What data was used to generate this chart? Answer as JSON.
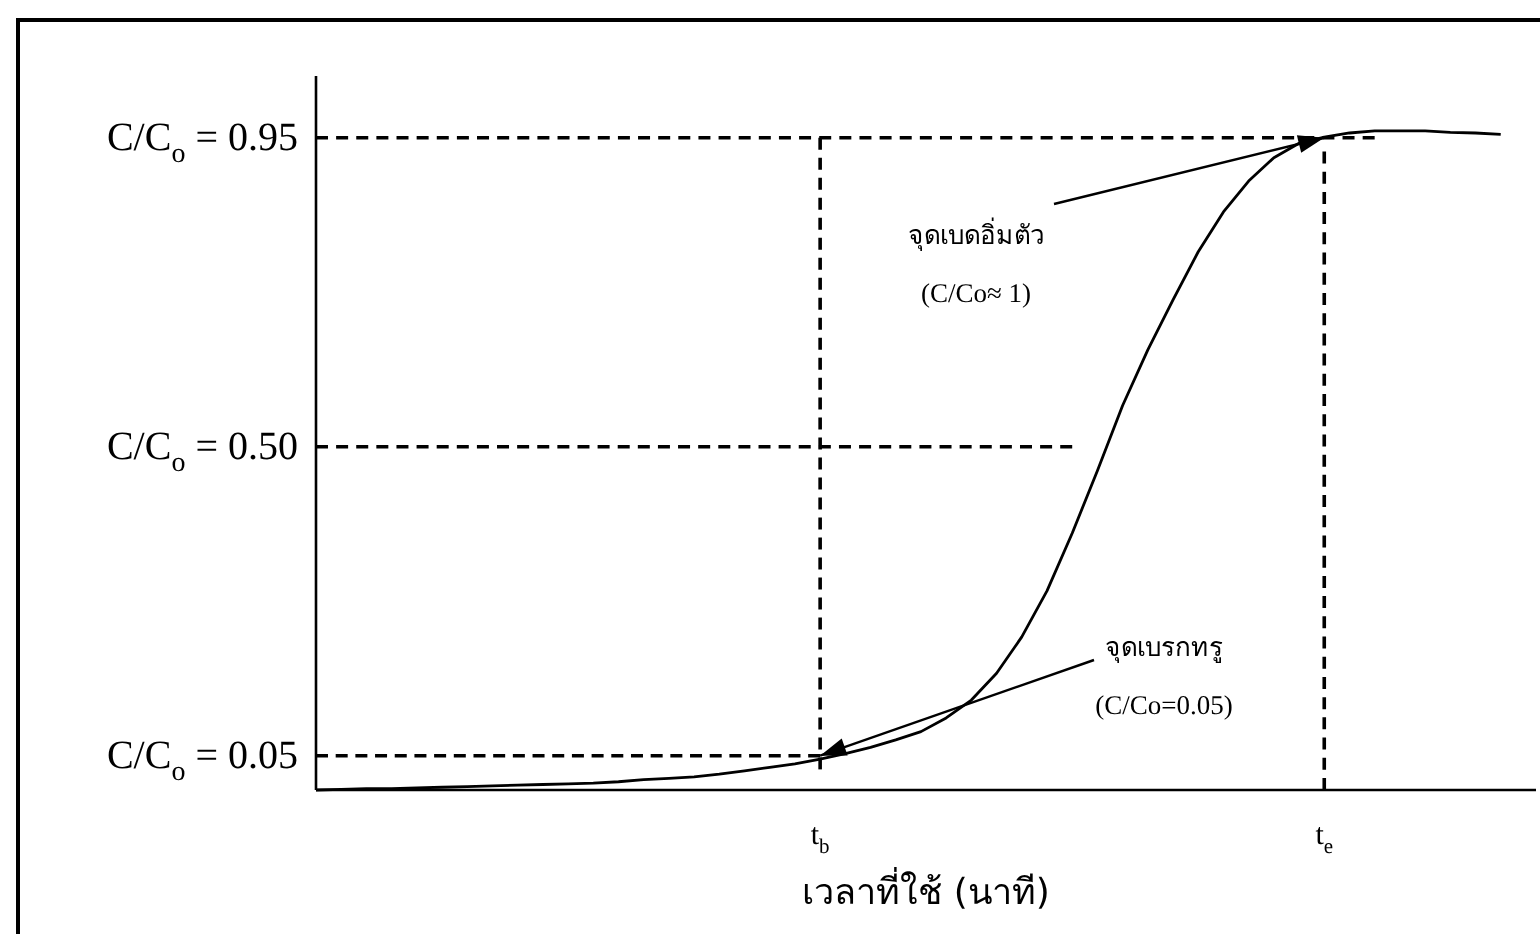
{
  "chart_data": {
    "type": "line",
    "xlabel": "เวลาที่ใช้ (นาที)",
    "categories": [
      null,
      null,
      null,
      null,
      null,
      null,
      null,
      null,
      null,
      null,
      null,
      null,
      null,
      null,
      null,
      null,
      null,
      null,
      null,
      null,
      "t$_{b}$",
      null,
      null,
      null,
      null,
      null,
      null,
      null,
      null,
      null,
      null,
      null,
      null,
      null,
      null,
      null,
      null,
      null,
      null,
      null,
      "t$_{e}$",
      null,
      null,
      null,
      null,
      null,
      null,
      null,
      null
    ],
    "ylim": [
      0,
      1.04
    ],
    "yticks": [
      {
        "value": 0.05,
        "label": "C/C$_{o}$ = 0.05"
      },
      {
        "value": 0.5,
        "label": "C/C$_{o}$ = 0.50"
      },
      {
        "value": 0.95,
        "label": "C/C$_{o}$ = 0.95"
      }
    ],
    "series": [
      {
        "color": "#000000",
        "line_style": "solid",
        "values": [
          0,
          0.001,
          0.002,
          0.002,
          0.003,
          0.004,
          0.005,
          0.006,
          0.007,
          0.008,
          0.009,
          0.01,
          0.012,
          0.015,
          0.017,
          0.019,
          0.023,
          0.028,
          0.033,
          0.038,
          0.045,
          0.053,
          0.062,
          0.073,
          0.085,
          0.105,
          0.131,
          0.17,
          0.223,
          0.29,
          0.374,
          0.465,
          0.56,
          0.641,
          0.714,
          0.784,
          0.842,
          0.887,
          0.921,
          0.942,
          0.951,
          0.957,
          0.96,
          0.96,
          0.96,
          0.958,
          0.957,
          0.955,
          null
        ]
      },
      {
        "color": "#000000",
        "line_style": "dashed",
        "values": [
          0.95,
          0.95,
          0.95,
          0.95,
          0.95,
          0.95,
          0.95,
          0.95,
          0.95,
          0.95,
          0.95,
          0.95,
          0.95,
          0.95,
          0.95,
          0.95,
          0.95,
          0.95,
          0.95,
          0.95,
          0.95,
          0.95,
          0.95,
          0.95,
          0.95,
          0.95,
          0.95,
          0.95,
          0.95,
          0.95,
          0.95,
          0.95,
          0.95,
          0.95,
          0.95,
          0.95,
          0.95,
          0.95,
          0.95,
          0.95,
          0.95,
          0.95,
          0.95,
          null,
          null,
          null,
          null,
          null,
          null
        ]
      },
      {
        "color": "#000000",
        "line_style": "dashed",
        "values": [
          0.5,
          0.5,
          0.5,
          0.5,
          0.5,
          0.5,
          0.5,
          0.5,
          0.5,
          0.5,
          0.5,
          0.5,
          0.5,
          0.5,
          0.5,
          0.5,
          0.5,
          0.5,
          0.5,
          0.5,
          0.5,
          0.5,
          0.5,
          0.5,
          0.5,
          0.5,
          0.5,
          0.5,
          0.5,
          0.5,
          0.5,
          null,
          null,
          null,
          null,
          null,
          null,
          null,
          null,
          null,
          null,
          null,
          null,
          null,
          null,
          null,
          null,
          null,
          null
        ]
      },
      {
        "color": "#000000",
        "line_style": "dashed",
        "values": [
          0.05,
          0.05,
          0.05,
          0.05,
          0.05,
          0.05,
          0.05,
          0.05,
          0.05,
          0.05,
          0.05,
          0.05,
          0.05,
          0.05,
          0.05,
          0.05,
          0.05,
          0.05,
          0.05,
          0.05,
          0.05,
          null,
          null,
          null,
          null,
          null,
          null,
          null,
          null,
          null,
          null,
          null,
          null,
          null,
          null,
          null,
          null,
          null,
          null,
          null,
          null,
          null,
          null,
          null,
          null,
          null,
          null,
          null,
          null
        ]
      },
      {
        "color": "#000000",
        "line_style": "dashed",
        "x": [
          "t$_{b}$",
          "t$_{b}$"
        ],
        "values": [
          0.03,
          0.95
        ]
      },
      {
        "color": "#000000",
        "line_style": "dashed",
        "x": [
          "t$_{e}$",
          "t$_{e}$"
        ],
        "values": [
          0,
          0.93
        ]
      }
    ],
    "annotations": [
      {
        "text": "จุดเบดอิ่มตัว",
        "x": "t$_{e}$",
        "y": 0.95
      },
      "(C/Co≈ 1)",
      "จุดเบรกทรู",
      {
        "text": "(C/Co=0.05)",
        "x": "t$_{b}$",
        "y": 0.05
      }
    ]
  }
}
